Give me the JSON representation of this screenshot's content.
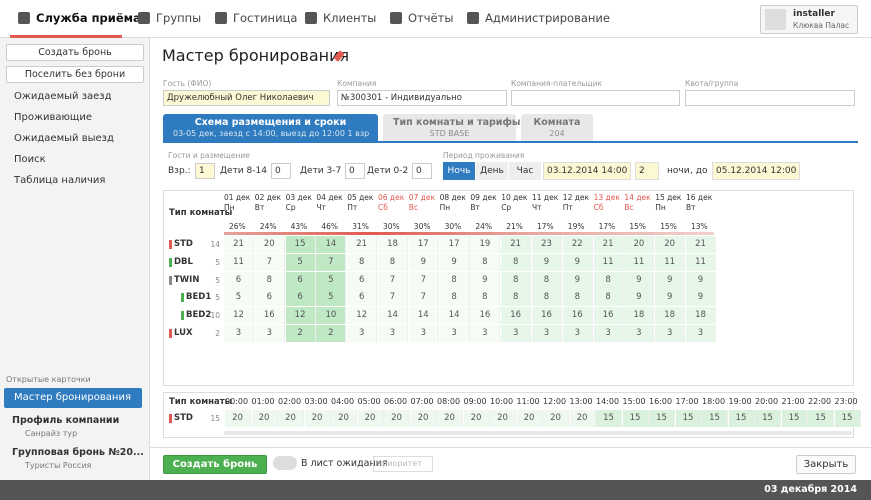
{
  "nav": {
    "items": [
      "Служба приёма",
      "Группы",
      "Гостиница",
      "Клиенты",
      "Отчёты",
      "Администрирование"
    ],
    "user": {
      "name": "installer",
      "hotel": "Клюква Палас"
    }
  },
  "sidebar": {
    "buttons": [
      "Создать бронь",
      "Поселить без брони"
    ],
    "links": [
      "Ожидаемый заезд",
      "Проживающие",
      "Ожидаемый выезд",
      "Поиск",
      "Таблица наличия"
    ],
    "open_cards_title": "Открытые карточки",
    "cards": [
      {
        "title": "Мастер бронирования"
      },
      {
        "title": "Профиль компании",
        "sub": "Санрайз тур"
      },
      {
        "title": "Групповая бронь №20...",
        "sub": "Туристы Россия"
      }
    ]
  },
  "main": {
    "title": "Мастер бронирования",
    "fields": [
      {
        "label": "Гость (ФИО)",
        "value": "Дружелюбный Олег Николаевич"
      },
      {
        "label": "Компания",
        "value": "№300301 - Индивидуально"
      },
      {
        "label": "Компания-плательщик"
      },
      {
        "label": "Квота/группа"
      }
    ],
    "tabs": [
      {
        "title": "Схема размещения и сроки",
        "sub": "03-05 дек, заезд с 14:00, выезд до 12:00 1 взр"
      },
      {
        "title": "Тип комнаты и тарифы",
        "sub": "STD BASE"
      },
      {
        "title": "Комната",
        "sub": "204"
      }
    ],
    "guests": {
      "label": "Гости и размещение",
      "items": [
        {
          "label": "Взр.:",
          "value": "1"
        },
        {
          "label": "Дети 8-14",
          "value": "0"
        },
        {
          "label": "Дети 3-7",
          "value": "0"
        },
        {
          "label": "Дети 0-2",
          "value": "0"
        }
      ]
    },
    "period": {
      "label": "Период проживания",
      "modes": [
        "Ночь",
        "День",
        "Час"
      ],
      "from": "03.12.2014 14:00",
      "nights": "2",
      "nights_label": "ночи",
      "to_label": ", до",
      "to": "05.12.2014 12:00"
    },
    "grid": {
      "header": "Тип комнаты",
      "days": [
        {
          "date": "01 дек",
          "dow": "Пн",
          "occ": "26%"
        },
        {
          "date": "02 дек",
          "dow": "Вт",
          "occ": "24%"
        },
        {
          "date": "03 дек",
          "dow": "Ср",
          "occ": "43%"
        },
        {
          "date": "04 дек",
          "dow": "Чт",
          "occ": "46%"
        },
        {
          "date": "05 дек",
          "dow": "Пт",
          "occ": "31%"
        },
        {
          "date": "06 дек",
          "dow": "Сб",
          "occ": "30%",
          "weekend": true
        },
        {
          "date": "07 дек",
          "dow": "Вс",
          "occ": "30%",
          "weekend": true
        },
        {
          "date": "08 дек",
          "dow": "Пн",
          "occ": "30%"
        },
        {
          "date": "09 дек",
          "dow": "Вт",
          "occ": "24%"
        },
        {
          "date": "10 дек",
          "dow": "Ср",
          "occ": "21%"
        },
        {
          "date": "11 дек",
          "dow": "Чт",
          "occ": "17%"
        },
        {
          "date": "12 дек",
          "dow": "Пт",
          "occ": "19%"
        },
        {
          "date": "13 дек",
          "dow": "Сб",
          "occ": "17%",
          "weekend": true
        },
        {
          "date": "14 дек",
          "dow": "Вс",
          "occ": "15%",
          "weekend": true
        },
        {
          "date": "15 дек",
          "dow": "Пн",
          "occ": "15%"
        },
        {
          "date": "16 дек",
          "dow": "Вт",
          "occ": "13%"
        }
      ],
      "rows": [
        {
          "name": "STD",
          "count": "14",
          "color": "#e05a4f",
          "values": [
            "21",
            "20",
            "15",
            "14",
            "21",
            "18",
            "17",
            "17",
            "19",
            "21",
            "23",
            "22",
            "21",
            "20",
            "20",
            "21"
          ]
        },
        {
          "name": "DBL",
          "count": "5",
          "color": "#4caf50",
          "values": [
            "11",
            "7",
            "5",
            "7",
            "8",
            "8",
            "9",
            "9",
            "8",
            "8",
            "9",
            "9",
            "11",
            "11",
            "11",
            "11"
          ]
        },
        {
          "name": "TWIN",
          "count": "5",
          "color": "#888888",
          "values": [
            "6",
            "8",
            "6",
            "5",
            "6",
            "7",
            "7",
            "8",
            "9",
            "8",
            "8",
            "9",
            "8",
            "9",
            "9",
            "9"
          ]
        },
        {
          "name": "BED1",
          "count": "5",
          "color": "#4caf50",
          "sub": true,
          "values": [
            "5",
            "6",
            "6",
            "5",
            "6",
            "7",
            "7",
            "8",
            "8",
            "8",
            "8",
            "8",
            "8",
            "9",
            "9",
            "9"
          ]
        },
        {
          "name": "BED2",
          "count": "10",
          "color": "#4caf50",
          "sub": true,
          "values": [
            "12",
            "16",
            "12",
            "10",
            "12",
            "14",
            "14",
            "14",
            "16",
            "16",
            "16",
            "16",
            "16",
            "18",
            "18",
            "18"
          ]
        },
        {
          "name": "LUX",
          "count": "2",
          "color": "#e05a4f",
          "values": [
            "3",
            "3",
            "2",
            "2",
            "3",
            "3",
            "3",
            "3",
            "3",
            "3",
            "3",
            "3",
            "3",
            "3",
            "3",
            "3"
          ]
        }
      ]
    },
    "hourly": {
      "header": "Тип комнаты",
      "hours": [
        "00:00",
        "01:00",
        "02:00",
        "03:00",
        "04:00",
        "05:00",
        "06:00",
        "07:00",
        "08:00",
        "09:00",
        "10:00",
        "11:00",
        "12:00",
        "13:00",
        "14:00",
        "15:00",
        "16:00",
        "17:00",
        "18:00",
        "19:00",
        "20:00",
        "21:00",
        "22:00",
        "23:00"
      ],
      "row": {
        "name": "STD",
        "count": "15",
        "values": [
          "20",
          "20",
          "20",
          "20",
          "20",
          "20",
          "20",
          "20",
          "20",
          "20",
          "20",
          "20",
          "20",
          "20",
          "15",
          "15",
          "15",
          "15",
          "15",
          "15",
          "15",
          "15",
          "15",
          "15"
        ]
      }
    },
    "actions": {
      "create": "Создать бронь",
      "waitlist": "В лист ожидания",
      "priority": "приоритет",
      "close": "Закрыть"
    }
  },
  "footer": {
    "date": "03 декабря 2014"
  }
}
